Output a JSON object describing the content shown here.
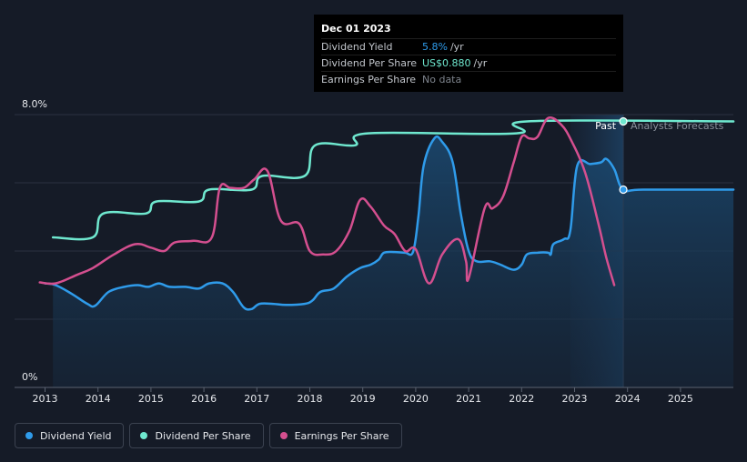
{
  "tooltip": {
    "date": "Dec 01 2023",
    "rows": [
      {
        "label": "Dividend Yield",
        "value": "5.8%",
        "unit": "/yr"
      },
      {
        "label": "Dividend Per Share",
        "value": "US$0.880",
        "unit": "/yr"
      },
      {
        "label": "Earnings Per Share",
        "value": "No data",
        "unit": ""
      }
    ]
  },
  "labels": {
    "past": "Past",
    "forecast": "Analysts Forecasts"
  },
  "legend": [
    {
      "label": "Dividend Yield",
      "color": "#2f9bea"
    },
    {
      "label": "Dividend Per Share",
      "color": "#6fe8cf"
    },
    {
      "label": "Earnings Per Share",
      "color": "#d44f8f"
    }
  ],
  "chart_data": {
    "type": "line",
    "xlim": [
      2012.45,
      2026.0
    ],
    "ylim": [
      0,
      8.0
    ],
    "y_tick_labels": [
      {
        "value": 8.0,
        "label": "8.0%"
      },
      {
        "value": 0,
        "label": "0%"
      }
    ],
    "x_ticks": [
      2013,
      2014,
      2015,
      2016,
      2017,
      2018,
      2019,
      2020,
      2021,
      2022,
      2023,
      2024,
      2025
    ],
    "gridlines": [
      2,
      4,
      6,
      8
    ],
    "past_boundary": 2023.92,
    "forecast_band": [
      2022.92,
      2023.92
    ],
    "series": [
      {
        "name": "Dividend Yield",
        "color": "#2f9bea",
        "points": [
          [
            2013.0,
            3.05
          ],
          [
            2013.2,
            3.0
          ],
          [
            2013.5,
            2.75
          ],
          [
            2013.8,
            2.45
          ],
          [
            2013.95,
            2.4
          ],
          [
            2014.2,
            2.8
          ],
          [
            2014.5,
            2.95
          ],
          [
            2014.75,
            3.0
          ],
          [
            2014.95,
            2.95
          ],
          [
            2015.15,
            3.05
          ],
          [
            2015.35,
            2.95
          ],
          [
            2015.65,
            2.95
          ],
          [
            2015.9,
            2.9
          ],
          [
            2016.1,
            3.05
          ],
          [
            2016.35,
            3.05
          ],
          [
            2016.55,
            2.8
          ],
          [
            2016.75,
            2.35
          ],
          [
            2016.9,
            2.3
          ],
          [
            2017.05,
            2.45
          ],
          [
            2017.3,
            2.45
          ],
          [
            2017.55,
            2.42
          ],
          [
            2017.9,
            2.45
          ],
          [
            2018.05,
            2.55
          ],
          [
            2018.2,
            2.8
          ],
          [
            2018.45,
            2.9
          ],
          [
            2018.7,
            3.25
          ],
          [
            2018.95,
            3.5
          ],
          [
            2019.15,
            3.6
          ],
          [
            2019.3,
            3.75
          ],
          [
            2019.4,
            3.95
          ],
          [
            2019.6,
            3.97
          ],
          [
            2019.8,
            3.95
          ],
          [
            2019.95,
            3.98
          ],
          [
            2020.05,
            5.0
          ],
          [
            2020.15,
            6.5
          ],
          [
            2020.35,
            7.3
          ],
          [
            2020.5,
            7.2
          ],
          [
            2020.7,
            6.6
          ],
          [
            2020.85,
            5.1
          ],
          [
            2021.0,
            4.0
          ],
          [
            2021.15,
            3.7
          ],
          [
            2021.4,
            3.7
          ],
          [
            2021.6,
            3.6
          ],
          [
            2021.85,
            3.45
          ],
          [
            2022.0,
            3.6
          ],
          [
            2022.1,
            3.9
          ],
          [
            2022.3,
            3.95
          ],
          [
            2022.5,
            3.95
          ],
          [
            2022.55,
            3.9
          ],
          [
            2022.6,
            4.2
          ],
          [
            2022.8,
            4.35
          ],
          [
            2022.92,
            4.6
          ],
          [
            2023.05,
            6.5
          ],
          [
            2023.3,
            6.55
          ],
          [
            2023.5,
            6.6
          ],
          [
            2023.6,
            6.7
          ],
          [
            2023.75,
            6.4
          ],
          [
            2023.92,
            5.8
          ],
          [
            2024.3,
            5.8
          ],
          [
            2026.0,
            5.8
          ]
        ]
      },
      {
        "name": "Dividend Per Share",
        "color": "#6fe8cf",
        "points": [
          [
            2013.15,
            4.4
          ],
          [
            2013.9,
            4.4
          ],
          [
            2014.1,
            5.1
          ],
          [
            2014.9,
            5.1
          ],
          [
            2015.1,
            5.45
          ],
          [
            2015.9,
            5.45
          ],
          [
            2016.1,
            5.8
          ],
          [
            2016.9,
            5.8
          ],
          [
            2017.1,
            6.2
          ],
          [
            2017.9,
            6.2
          ],
          [
            2018.1,
            7.1
          ],
          [
            2018.85,
            7.1
          ],
          [
            2019.1,
            7.45
          ],
          [
            2021.9,
            7.45
          ],
          [
            2022.1,
            7.8
          ],
          [
            2026.0,
            7.8
          ]
        ]
      },
      {
        "name": "Earnings Per Share",
        "color": "#d44f8f",
        "points": [
          [
            2012.9,
            3.08
          ],
          [
            2013.2,
            3.05
          ],
          [
            2013.6,
            3.3
          ],
          [
            2013.9,
            3.5
          ],
          [
            2014.3,
            3.9
          ],
          [
            2014.7,
            4.2
          ],
          [
            2015.0,
            4.1
          ],
          [
            2015.25,
            4.0
          ],
          [
            2015.45,
            4.25
          ],
          [
            2015.8,
            4.3
          ],
          [
            2016.15,
            4.4
          ],
          [
            2016.3,
            5.85
          ],
          [
            2016.5,
            5.85
          ],
          [
            2016.75,
            5.85
          ],
          [
            2016.95,
            6.1
          ],
          [
            2017.2,
            6.35
          ],
          [
            2017.45,
            4.9
          ],
          [
            2017.8,
            4.8
          ],
          [
            2018.0,
            4.0
          ],
          [
            2018.25,
            3.9
          ],
          [
            2018.5,
            4.0
          ],
          [
            2018.75,
            4.6
          ],
          [
            2018.95,
            5.5
          ],
          [
            2019.15,
            5.3
          ],
          [
            2019.4,
            4.75
          ],
          [
            2019.6,
            4.5
          ],
          [
            2019.8,
            4.0
          ],
          [
            2020.0,
            4.05
          ],
          [
            2020.25,
            3.05
          ],
          [
            2020.5,
            3.9
          ],
          [
            2020.8,
            4.35
          ],
          [
            2020.95,
            3.7
          ],
          [
            2021.0,
            3.2
          ],
          [
            2021.3,
            5.25
          ],
          [
            2021.45,
            5.25
          ],
          [
            2021.65,
            5.6
          ],
          [
            2021.85,
            6.6
          ],
          [
            2022.0,
            7.35
          ],
          [
            2022.15,
            7.3
          ],
          [
            2022.3,
            7.35
          ],
          [
            2022.5,
            7.9
          ],
          [
            2022.75,
            7.7
          ],
          [
            2022.95,
            7.2
          ],
          [
            2023.2,
            6.3
          ],
          [
            2023.45,
            4.8
          ],
          [
            2023.6,
            3.8
          ],
          [
            2023.75,
            3.0
          ]
        ]
      }
    ],
    "markers": [
      {
        "series": "Dividend Yield",
        "x": 2023.92,
        "y": 5.8
      },
      {
        "series": "Dividend Per Share",
        "x": 2023.92,
        "y": 7.8
      }
    ]
  }
}
